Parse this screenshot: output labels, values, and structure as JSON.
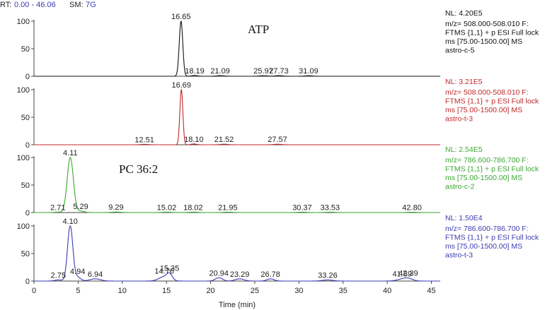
{
  "header": {
    "rt_label": "RT:",
    "rt_range": "0.00 - 46.06",
    "sm_label": "SM:",
    "sm_value": "7G"
  },
  "chart_data": {
    "type": "line",
    "xlabel": "Time (min)",
    "xlim": [
      0,
      46
    ],
    "xticks": [
      0,
      5,
      10,
      15,
      20,
      25,
      30,
      35,
      40,
      45
    ],
    "ylim": [
      0,
      100
    ],
    "yticks": [
      0,
      50,
      100
    ],
    "panels": [
      {
        "color": "#111111",
        "annotation": "ATP",
        "nl": "NL: 4.20E5",
        "info": [
          "m/z= 508.000-508.010 F:",
          "FTMS {1,1} + p ESI Full lock",
          "ms [75.00-1500.00] MS",
          "astro-c-5"
        ],
        "peaks": [
          {
            "rt": 16.65,
            "height": 100,
            "width": 0.2
          },
          {
            "rt": 18.19,
            "height": 1.5,
            "width": 0.3
          },
          {
            "rt": 21.09,
            "height": 1.2,
            "width": 0.4
          },
          {
            "rt": 25.97,
            "height": 1.0,
            "width": 0.4
          },
          {
            "rt": 27.73,
            "height": 1.2,
            "width": 0.4
          },
          {
            "rt": 31.09,
            "height": 1.0,
            "width": 0.4
          }
        ]
      },
      {
        "color": "#c0282a",
        "annotation": "",
        "nl": "NL: 3.21E5",
        "info": [
          "m/z= 508.000-508.010 F:",
          "FTMS {1,1} + p ESI Full lock",
          "ms [75.00-1500.00] MS",
          "astro-t-3"
        ],
        "peaks": [
          {
            "rt": 12.51,
            "height": 0.8,
            "width": 0.4
          },
          {
            "rt": 16.69,
            "height": 100,
            "width": 0.17
          },
          {
            "rt": 18.1,
            "height": 1.5,
            "width": 0.3
          },
          {
            "rt": 21.52,
            "height": 1.0,
            "width": 0.4
          },
          {
            "rt": 27.57,
            "height": 1.0,
            "width": 0.4
          }
        ]
      },
      {
        "color": "#3aa832",
        "annotation": "PC 36:2",
        "nl": "NL: 2.54E5",
        "info": [
          "m/z= 786.600-786.700 F:",
          "FTMS {1,1} + p ESI Full lock",
          "ms [75.00-1500.00] MS",
          "astro-c-2"
        ],
        "peaks": [
          {
            "rt": 2.71,
            "height": 0.8,
            "width": 0.4
          },
          {
            "rt": 4.11,
            "height": 100,
            "width": 0.35
          },
          {
            "rt": 5.29,
            "height": 2.5,
            "width": 0.4
          },
          {
            "rt": 9.29,
            "height": 1.0,
            "width": 0.5
          },
          {
            "rt": 15.02,
            "height": 0.8,
            "width": 0.5
          },
          {
            "rt": 18.02,
            "height": 0.8,
            "width": 0.5
          },
          {
            "rt": 21.95,
            "height": 0.8,
            "width": 0.5
          },
          {
            "rt": 30.37,
            "height": 0.7,
            "width": 0.5
          },
          {
            "rt": 33.53,
            "height": 0.7,
            "width": 0.5
          },
          {
            "rt": 42.8,
            "height": 0.6,
            "width": 0.5
          }
        ]
      },
      {
        "color": "#3b3bb0",
        "annotation": "",
        "nl": "NL: 1.50E4",
        "info": [
          "m/z= 786.600-786.700 F:",
          "FTMS {1,1} + p ESI Full lock",
          "ms [75.00-1500.00] MS",
          "astro-t-3"
        ],
        "peaks": [
          {
            "rt": 2.75,
            "height": 2,
            "width": 0.4
          },
          {
            "rt": 4.1,
            "height": 100,
            "width": 0.3
          },
          {
            "rt": 4.94,
            "height": 7,
            "width": 0.35
          },
          {
            "rt": 6.94,
            "height": 4,
            "width": 0.6
          },
          {
            "rt": 14.76,
            "height": 8,
            "width": 0.6
          },
          {
            "rt": 15.35,
            "height": 10,
            "width": 0.3
          },
          {
            "rt": 20.94,
            "height": 6,
            "width": 0.4
          },
          {
            "rt": 23.29,
            "height": 4,
            "width": 0.5
          },
          {
            "rt": 26.78,
            "height": 4,
            "width": 0.4
          },
          {
            "rt": 33.26,
            "height": 2,
            "width": 0.6
          },
          {
            "rt": 41.69,
            "height": 3,
            "width": 0.6
          },
          {
            "rt": 42.39,
            "height": 4,
            "width": 0.5
          }
        ]
      }
    ]
  }
}
